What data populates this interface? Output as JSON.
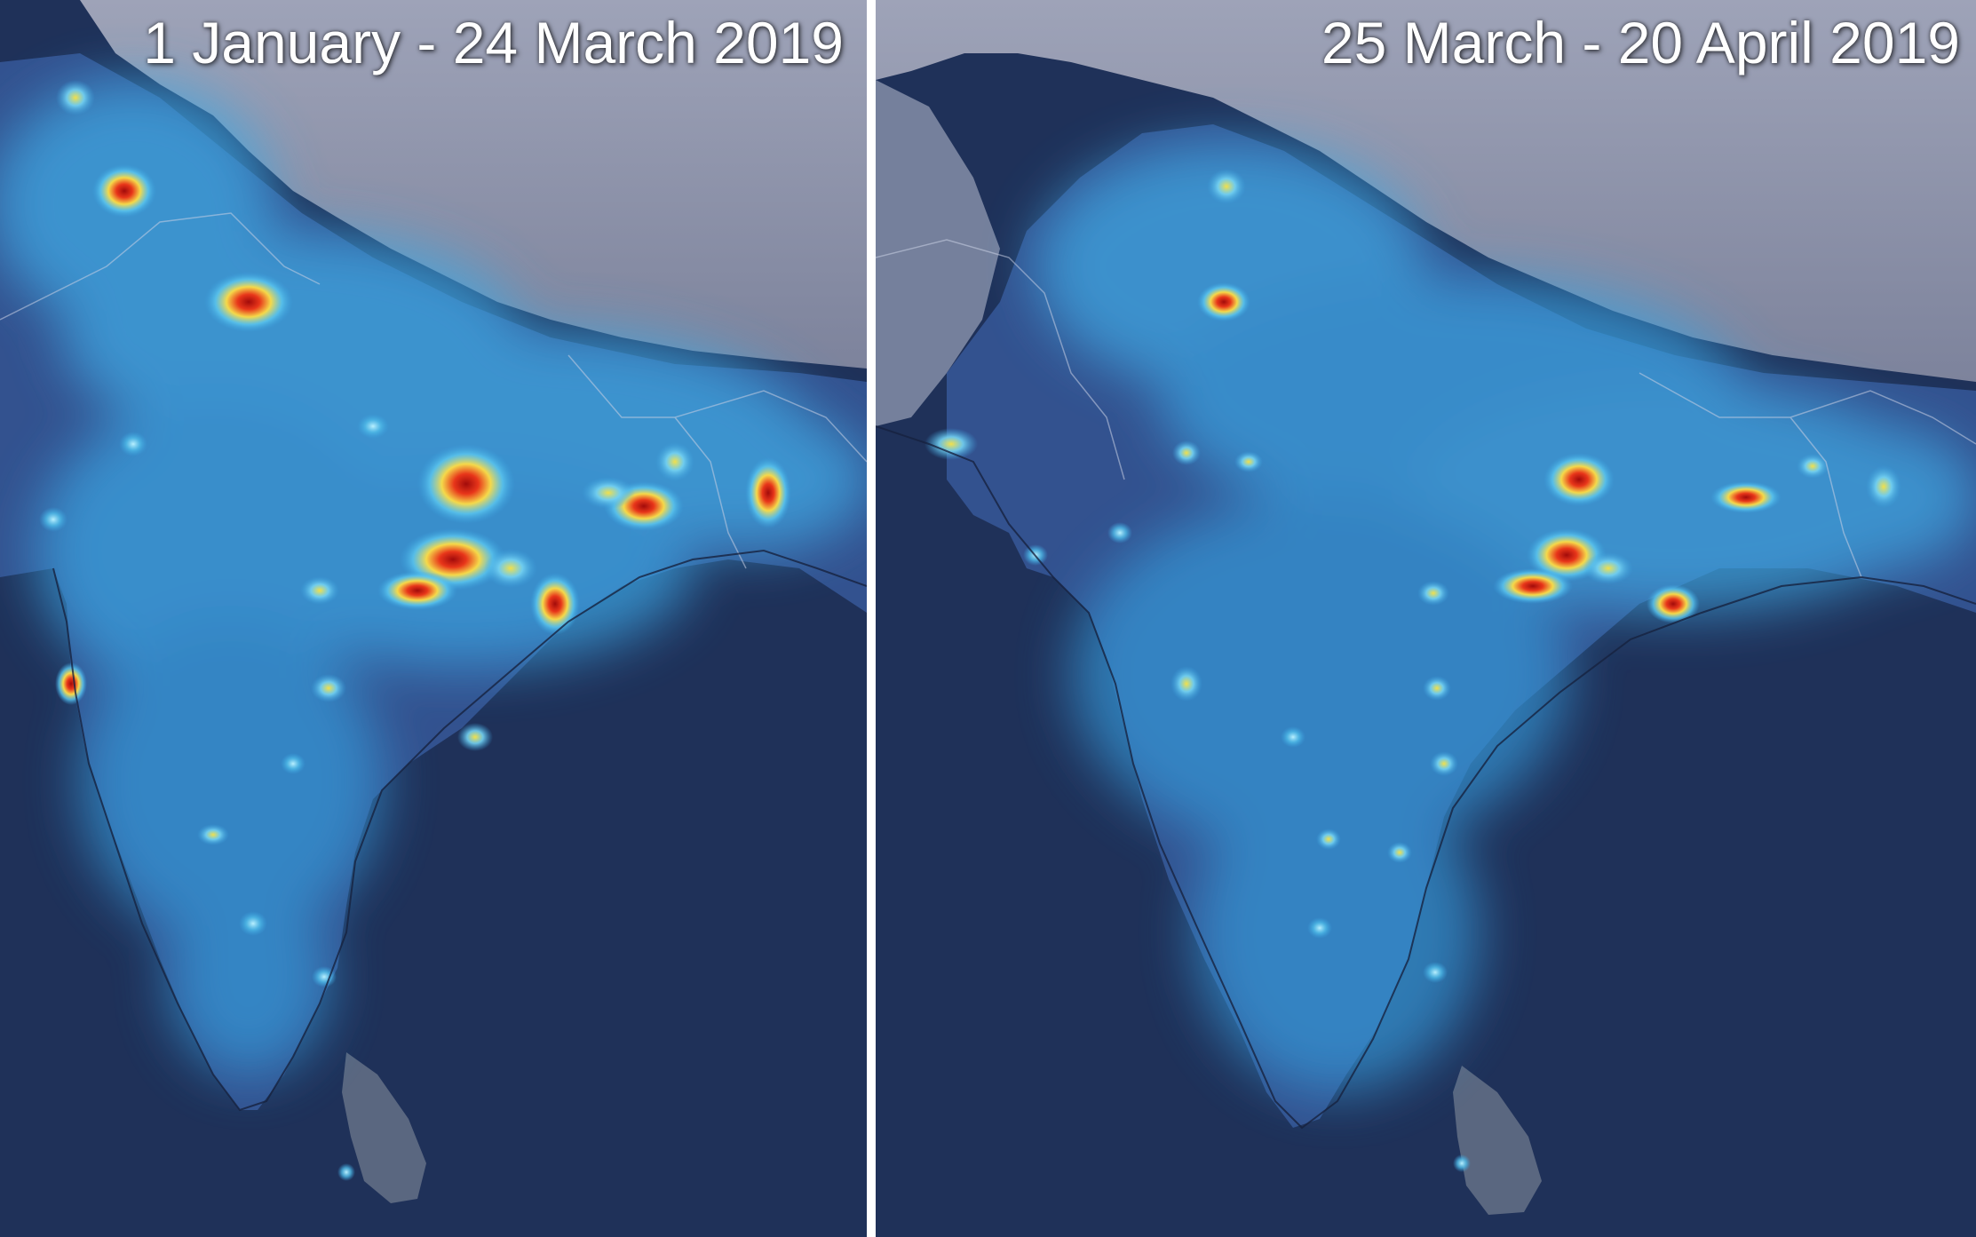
{
  "panels": [
    {
      "title": "1 January - 24 March 2019"
    },
    {
      "title": "25 March - 20 April 2019"
    }
  ],
  "colors": {
    "ocean": "#1f3159",
    "mountains": "#8d93ab",
    "land": "#3c5a9c",
    "glow_low": "#34a6e6",
    "glow_mid": "#f2d24a",
    "glow_high": "#c81616"
  }
}
